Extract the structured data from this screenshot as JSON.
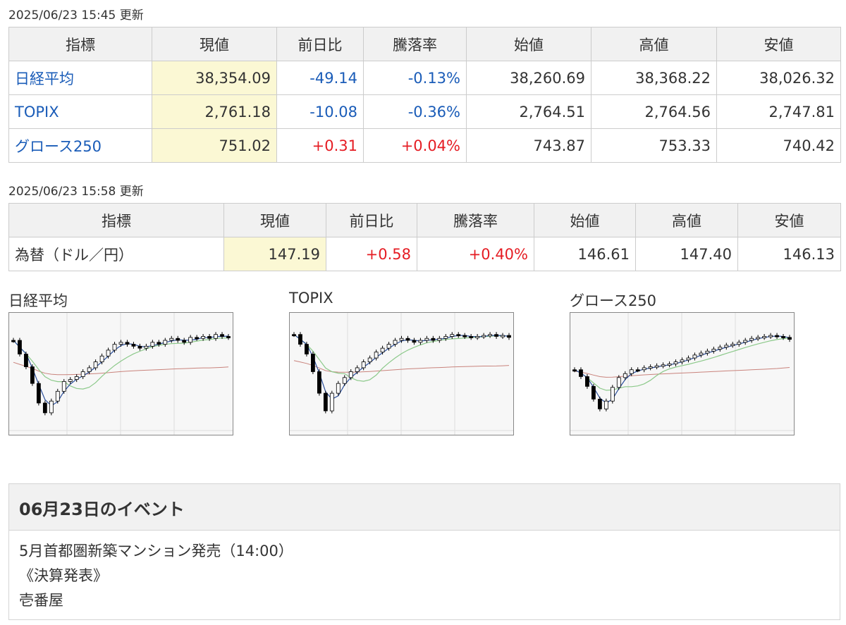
{
  "section1": {
    "updated": "2025/06/23 15:45 更新",
    "headers": [
      "指標",
      "現値",
      "前日比",
      "騰落率",
      "始値",
      "高値",
      "安値"
    ],
    "rows": [
      {
        "name": "日経平均",
        "current": "38,354.09",
        "change": "-49.14",
        "pct": "-0.13%",
        "open": "38,260.69",
        "high": "38,368.22",
        "low": "38,026.32",
        "direction": "down"
      },
      {
        "name": "TOPIX",
        "current": "2,761.18",
        "change": "-10.08",
        "pct": "-0.36%",
        "open": "2,764.51",
        "high": "2,764.56",
        "low": "2,747.81",
        "direction": "down"
      },
      {
        "name": "グロース250",
        "current": "751.02",
        "change": "+0.31",
        "pct": "+0.04%",
        "open": "743.87",
        "high": "753.33",
        "low": "740.42",
        "direction": "up"
      }
    ]
  },
  "section2": {
    "updated": "2025/06/23 15:58 更新",
    "headers": [
      "指標",
      "現値",
      "前日比",
      "騰落率",
      "始値",
      "高値",
      "安値"
    ],
    "rows": [
      {
        "name": "為替（ドル／円）",
        "current": "147.19",
        "change": "+0.58",
        "pct": "+0.40%",
        "open": "146.61",
        "high": "147.40",
        "low": "146.13",
        "direction": "up"
      }
    ]
  },
  "charts": [
    {
      "title": "日経平均",
      "trend": [
        0.18,
        0.32,
        0.45,
        0.62,
        0.82,
        0.92,
        0.8,
        0.7,
        0.6,
        0.58,
        0.55,
        0.5,
        0.46,
        0.4,
        0.34,
        0.28,
        0.22,
        0.2,
        0.22,
        0.24,
        0.26,
        0.24,
        0.2,
        0.22,
        0.18,
        0.16,
        0.18,
        0.2,
        0.15,
        0.16,
        0.14,
        0.16,
        0.12,
        0.14,
        0.15
      ]
    },
    {
      "title": "TOPIX",
      "trend": [
        0.12,
        0.22,
        0.32,
        0.5,
        0.72,
        0.9,
        0.72,
        0.62,
        0.56,
        0.5,
        0.46,
        0.4,
        0.36,
        0.3,
        0.26,
        0.22,
        0.18,
        0.16,
        0.18,
        0.2,
        0.18,
        0.16,
        0.18,
        0.16,
        0.14,
        0.12,
        0.13,
        0.14,
        0.15,
        0.14,
        0.13,
        0.12,
        0.14,
        0.13,
        0.15
      ]
    },
    {
      "title": "グロース250",
      "trend": [
        0.48,
        0.55,
        0.65,
        0.78,
        0.88,
        0.8,
        0.66,
        0.56,
        0.52,
        0.48,
        0.48,
        0.46,
        0.45,
        0.44,
        0.43,
        0.42,
        0.4,
        0.38,
        0.36,
        0.33,
        0.31,
        0.29,
        0.27,
        0.25,
        0.23,
        0.22,
        0.2,
        0.18,
        0.16,
        0.15,
        0.14,
        0.13,
        0.14,
        0.15,
        0.17
      ]
    }
  ],
  "events": {
    "heading": "06月23日のイベント",
    "lines": [
      "5月首都圏新築マンション発売（14:00）",
      "《決算発表》",
      "壱番屋"
    ]
  },
  "colors": {
    "up": "#e51c23",
    "down": "#1a5cb8",
    "highlight": "#fbf8d4",
    "header_bg": "#f1f1f1"
  }
}
